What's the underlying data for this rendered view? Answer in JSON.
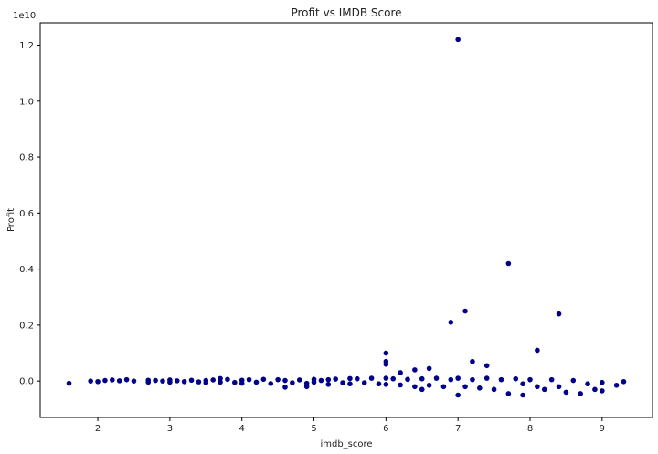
{
  "chart_data": {
    "type": "scatter",
    "title": "Profit vs IMDB Score",
    "xlabel": "imdb_score",
    "ylabel": "Profit",
    "offset_label": "1e10",
    "xlim": [
      1.2,
      9.7
    ],
    "ylim": [
      -0.13,
      1.28
    ],
    "xticks": [
      2,
      3,
      4,
      5,
      6,
      7,
      8,
      9
    ],
    "yticks": [
      0.0,
      0.2,
      0.4,
      0.6,
      0.8,
      1.0,
      1.2
    ],
    "ytick_labels": [
      "0.0",
      "0.2",
      "0.4",
      "0.6",
      "0.8",
      "1.0",
      "1.2"
    ],
    "grid": false,
    "marker_color": "#00008b",
    "points": [
      [
        1.6,
        -0.008
      ],
      [
        1.9,
        0.0
      ],
      [
        2.0,
        -0.002
      ],
      [
        2.1,
        0.002
      ],
      [
        2.2,
        0.004
      ],
      [
        2.3,
        0.001
      ],
      [
        2.4,
        0.005
      ],
      [
        2.5,
        0.0
      ],
      [
        2.7,
        -0.004
      ],
      [
        2.7,
        0.003
      ],
      [
        2.8,
        0.002
      ],
      [
        2.9,
        0.0
      ],
      [
        3.0,
        0.004
      ],
      [
        3.0,
        -0.004
      ],
      [
        3.1,
        0.001
      ],
      [
        3.2,
        -0.002
      ],
      [
        3.3,
        0.003
      ],
      [
        3.4,
        -0.003
      ],
      [
        3.5,
        0.002
      ],
      [
        3.5,
        -0.006
      ],
      [
        3.6,
        0.004
      ],
      [
        3.7,
        0.009
      ],
      [
        3.7,
        -0.004
      ],
      [
        3.8,
        0.006
      ],
      [
        3.9,
        -0.005
      ],
      [
        4.0,
        0.003
      ],
      [
        4.0,
        -0.008
      ],
      [
        4.1,
        0.005
      ],
      [
        4.2,
        -0.004
      ],
      [
        4.3,
        0.006
      ],
      [
        4.4,
        -0.009
      ],
      [
        4.5,
        0.005
      ],
      [
        4.6,
        -0.022
      ],
      [
        4.6,
        0.002
      ],
      [
        4.7,
        -0.006
      ],
      [
        4.8,
        0.004
      ],
      [
        4.9,
        -0.008
      ],
      [
        4.9,
        -0.02
      ],
      [
        5.0,
        0.006
      ],
      [
        5.0,
        -0.004
      ],
      [
        5.1,
        0.002
      ],
      [
        5.2,
        0.005
      ],
      [
        5.2,
        -0.012
      ],
      [
        5.3,
        0.007
      ],
      [
        5.4,
        -0.006
      ],
      [
        5.5,
        0.009
      ],
      [
        5.5,
        -0.01
      ],
      [
        5.6,
        0.008
      ],
      [
        5.7,
        -0.006
      ],
      [
        5.8,
        0.01
      ],
      [
        5.9,
        -0.01
      ],
      [
        6.0,
        0.1
      ],
      [
        6.0,
        0.07
      ],
      [
        6.0,
        0.06
      ],
      [
        6.0,
        0.01
      ],
      [
        6.0,
        -0.012
      ],
      [
        6.1,
        0.008
      ],
      [
        6.2,
        0.03
      ],
      [
        6.2,
        -0.014
      ],
      [
        6.3,
        0.006
      ],
      [
        6.4,
        0.04
      ],
      [
        6.4,
        -0.02
      ],
      [
        6.5,
        -0.03
      ],
      [
        6.5,
        0.008
      ],
      [
        6.6,
        0.045
      ],
      [
        6.6,
        -0.015
      ],
      [
        6.7,
        0.01
      ],
      [
        6.8,
        -0.02
      ],
      [
        6.9,
        0.21
      ],
      [
        6.9,
        0.005
      ],
      [
        7.0,
        1.22
      ],
      [
        7.0,
        -0.05
      ],
      [
        7.0,
        0.01
      ],
      [
        7.1,
        0.25
      ],
      [
        7.1,
        -0.02
      ],
      [
        7.2,
        0.07
      ],
      [
        7.2,
        0.005
      ],
      [
        7.3,
        -0.025
      ],
      [
        7.4,
        0.055
      ],
      [
        7.4,
        0.01
      ],
      [
        7.5,
        -0.03
      ],
      [
        7.6,
        0.005
      ],
      [
        7.7,
        0.42
      ],
      [
        7.7,
        -0.045
      ],
      [
        7.8,
        0.008
      ],
      [
        7.9,
        -0.05
      ],
      [
        7.9,
        -0.01
      ],
      [
        8.0,
        0.005
      ],
      [
        8.1,
        0.11
      ],
      [
        8.1,
        -0.02
      ],
      [
        8.2,
        -0.03
      ],
      [
        8.3,
        0.005
      ],
      [
        8.4,
        0.24
      ],
      [
        8.4,
        -0.02
      ],
      [
        8.5,
        -0.04
      ],
      [
        8.6,
        0.002
      ],
      [
        8.7,
        -0.045
      ],
      [
        8.8,
        -0.01
      ],
      [
        8.9,
        -0.03
      ],
      [
        9.0,
        -0.005
      ],
      [
        9.0,
        -0.035
      ],
      [
        9.2,
        -0.015
      ],
      [
        9.3,
        -0.002
      ]
    ]
  }
}
